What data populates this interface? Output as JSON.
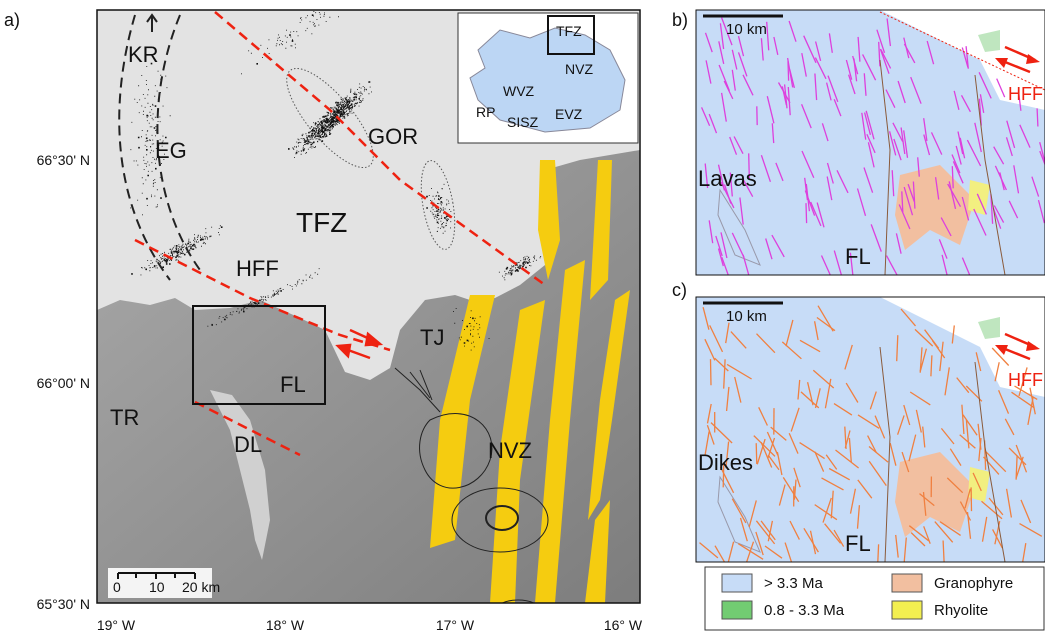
{
  "panel_a": {
    "label": "a)",
    "places": [
      "KR",
      "EG",
      "GOR",
      "TFZ",
      "HFF",
      "TJ",
      "FL",
      "TR",
      "DL",
      "NVZ"
    ],
    "inset": [
      "TFZ",
      "NVZ",
      "WVZ",
      "RP",
      "SISZ",
      "EVZ"
    ],
    "scale": [
      "0",
      "10",
      "20 km"
    ],
    "lat_labels": [
      "66°30' N",
      "66°00' N",
      "65°30' N"
    ],
    "lon_labels": [
      "19° W",
      "18° W",
      "17° W",
      "16° W"
    ]
  },
  "panel_b": {
    "label": "b)",
    "scale": "10 km",
    "unit": "Lavas",
    "place": "FL",
    "fault": "HFF"
  },
  "panel_c": {
    "label": "c)",
    "scale": "10 km",
    "unit": "Dikes",
    "place": "FL",
    "fault": "HFF"
  },
  "legend": [
    "> 3.3 Ma",
    "0.8 - 3.3 Ma",
    "Granophyre",
    "Rhyolite"
  ]
}
